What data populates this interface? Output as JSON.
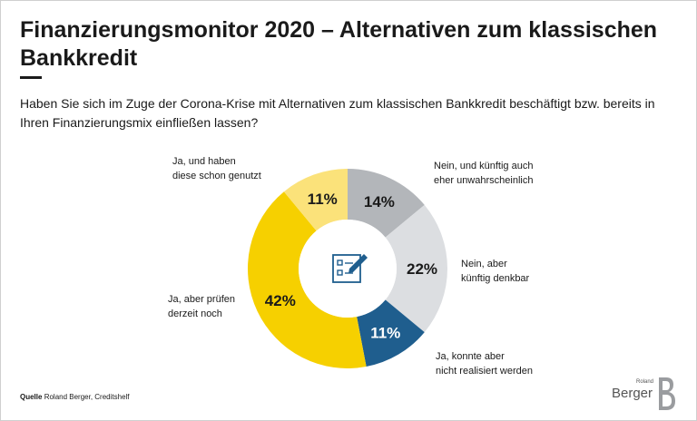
{
  "title": "Finanzierungsmonitor 2020 – Alternativen zum klassischen Bankkredit",
  "question": "Haben Sie sich im Zuge der Corona-Krise mit Alternativen zum klassischen Bankkredit beschäftigt bzw. bereits in Ihren Finanzierungsmix einfließen lassen?",
  "source": {
    "prefix": "Quelle",
    "text": "Roland Berger, Creditshelf"
  },
  "logo": {
    "small": "Roland",
    "main": "Berger",
    "mark": "B"
  },
  "chart_data": {
    "type": "pie",
    "variant": "donut",
    "categories": [
      "Nein, und künftig auch eher unwahrscheinlich",
      "Nein, aber künftig denkbar",
      "Ja, konnte aber nicht realisiert werden",
      "Ja, aber prüfen derzeit noch",
      "Ja, und haben diese schon genutzt"
    ],
    "values": [
      14,
      22,
      11,
      42,
      11
    ],
    "value_labels": [
      "14%",
      "22%",
      "11%",
      "42%",
      "11%"
    ],
    "colors": [
      "#b3b6ba",
      "#dcdee1",
      "#1f5e8e",
      "#f6d000",
      "#fbe27a"
    ],
    "label_colors": [
      "#1a1a1a",
      "#1a1a1a",
      "#ffffff",
      "#1a1a1a",
      "#1a1a1a"
    ],
    "label_lines": [
      [
        "Nein, und künftig auch",
        "eher unwahrscheinlich"
      ],
      [
        "Nein, aber",
        "künftig denkbar"
      ],
      [
        "Ja, konnte aber",
        "nicht realisiert werden"
      ],
      [
        "Ja, aber prüfen",
        "derzeit noch"
      ],
      [
        "Ja, und haben",
        "diese schon genutzt"
      ]
    ],
    "center_icon": "checklist-pencil-icon"
  }
}
